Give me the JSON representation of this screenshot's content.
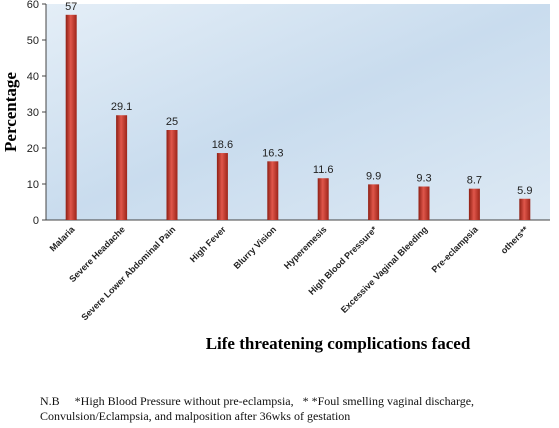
{
  "chart_data": {
    "type": "bar",
    "categories": [
      "Malaria",
      "Severe Headache",
      "Severe Lower Abdominal Pain",
      "High Fever",
      "Blurry Vision",
      "Hyperemesis",
      "High Blood Pressure*",
      "Excessive Vaginal Bleeding",
      "Pre-eclampsia",
      "others**"
    ],
    "values": [
      57,
      29.1,
      25,
      18.6,
      16.3,
      11.6,
      9.9,
      9.3,
      8.7,
      5.9
    ],
    "data_labels": [
      "57",
      "29.1",
      "25",
      "18.6",
      "16.3",
      "11.6",
      "9.9",
      "9.3",
      "8.7",
      "5.9"
    ],
    "yticks": [
      0,
      10,
      20,
      30,
      40,
      50,
      60
    ],
    "ylim": [
      0,
      60
    ],
    "xlabel": "Life threatening complications faced",
    "ylabel": "Percentage",
    "grid": false,
    "bar_color": "#c0392b",
    "plot_background": "#cfe0ef"
  },
  "note": {
    "line1": "N.B     *High Blood Pressure without pre-eclampsia,   * *Foul smelling vaginal discharge,",
    "line2": "Convulsion/Eclampsia, and malposition after 36wks of gestation"
  }
}
